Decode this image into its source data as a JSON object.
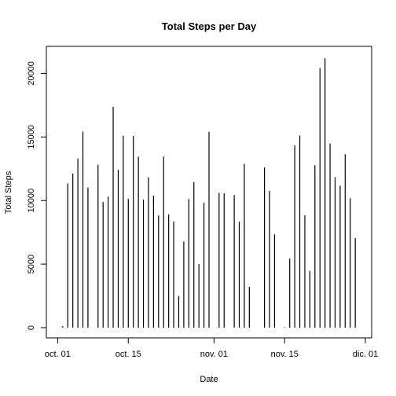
{
  "chart_data": {
    "type": "bar",
    "style": "vertical-lines",
    "title": "Total Steps per Day",
    "xlabel": "Date",
    "ylabel": "Total Steps",
    "x_axis": {
      "ticks": [
        {
          "date": "2012-10-01",
          "label": "oct. 01"
        },
        {
          "date": "2012-10-15",
          "label": "oct. 15"
        },
        {
          "date": "2012-11-01",
          "label": "nov. 01"
        },
        {
          "date": "2012-11-15",
          "label": "nov. 15"
        },
        {
          "date": "2012-12-01",
          "label": "dic. 01"
        }
      ],
      "xlim": [
        "2012-09-30",
        "2012-12-01"
      ]
    },
    "y_axis": {
      "ticks": [
        0,
        5000,
        10000,
        15000,
        20000
      ],
      "ylim": [
        0,
        21200
      ]
    },
    "grid": false,
    "legend": "none",
    "line_color": "#000000",
    "series": [
      {
        "dates": [
          "2012-10-02",
          "2012-10-03",
          "2012-10-04",
          "2012-10-05",
          "2012-10-06",
          "2012-10-07",
          "2012-10-09",
          "2012-10-10",
          "2012-10-11",
          "2012-10-12",
          "2012-10-13",
          "2012-10-14",
          "2012-10-15",
          "2012-10-16",
          "2012-10-17",
          "2012-10-18",
          "2012-10-19",
          "2012-10-20",
          "2012-10-21",
          "2012-10-22",
          "2012-10-23",
          "2012-10-24",
          "2012-10-25",
          "2012-10-26",
          "2012-10-27",
          "2012-10-28",
          "2012-10-29",
          "2012-10-30",
          "2012-10-31",
          "2012-11-02",
          "2012-11-03",
          "2012-11-05",
          "2012-11-06",
          "2012-11-07",
          "2012-11-08",
          "2012-11-11",
          "2012-11-12",
          "2012-11-13",
          "2012-11-15",
          "2012-11-16",
          "2012-11-17",
          "2012-11-18",
          "2012-11-19",
          "2012-11-20",
          "2012-11-21",
          "2012-11-22",
          "2012-11-23",
          "2012-11-24",
          "2012-11-25",
          "2012-11-26",
          "2012-11-27",
          "2012-11-28",
          "2012-11-29"
        ],
        "values": [
          126,
          11352,
          12116,
          13294,
          15420,
          11015,
          12811,
          9900,
          10304,
          17382,
          12426,
          15098,
          10139,
          15084,
          13452,
          10056,
          11829,
          10395,
          8821,
          13460,
          8918,
          8355,
          2492,
          6778,
          10119,
          11458,
          5018,
          9819,
          15414,
          10600,
          10571,
          10439,
          8334,
          12883,
          3219,
          12608,
          10765,
          7336,
          41,
          5441,
          14339,
          15110,
          8841,
          4472,
          12787,
          20427,
          21194,
          14478,
          11834,
          11162,
          13646,
          10183,
          7047
        ]
      }
    ]
  }
}
